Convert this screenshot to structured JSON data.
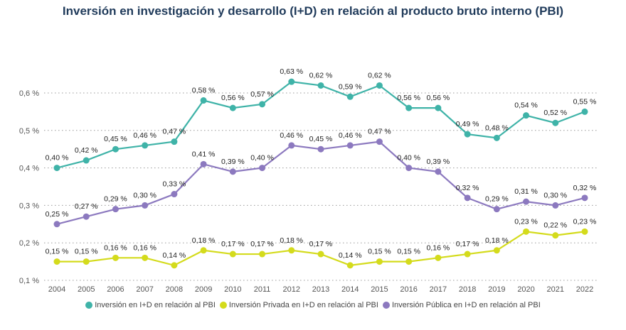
{
  "chart_data": {
    "type": "line",
    "title": "Inversión en investigación y desarrollo (I+D) en relación al producto bruto interno (PBI)",
    "xlabel": "",
    "ylabel": "",
    "x": [
      "2004",
      "2005",
      "2006",
      "2007",
      "2008",
      "2009",
      "2010",
      "2011",
      "2012",
      "2013",
      "2014",
      "2015",
      "2016",
      "2017",
      "2018",
      "2019",
      "2020",
      "2021",
      "2022"
    ],
    "ylim": [
      0.1,
      0.6
    ],
    "yticks": [
      0.1,
      0.2,
      0.3,
      0.4,
      0.5,
      0.6
    ],
    "ytick_labels": [
      "0,1 %",
      "0,2 %",
      "0,3 %",
      "0,4 %",
      "0,5 %",
      "0,6 %"
    ],
    "grid": "horizontal-dotted",
    "legend_position": "bottom",
    "series": [
      {
        "name": "Inversión en I+D en relación al PBI",
        "color": "#3fb3a8",
        "values": [
          0.4,
          0.42,
          0.45,
          0.46,
          0.47,
          0.58,
          0.56,
          0.57,
          0.63,
          0.62,
          0.59,
          0.62,
          0.56,
          0.56,
          0.49,
          0.48,
          0.54,
          0.52,
          0.55
        ],
        "labels": [
          "0,40 %",
          "0,42 %",
          "0,45 %",
          "0,46 %",
          "0,47 %",
          "0,58 %",
          "0,56 %",
          "0,57 %",
          "0,63 %",
          "0,62 %",
          "0,59 %",
          "0,62 %",
          "0,56 %",
          "0,56 %",
          "0,49 %",
          "0,48 %",
          "0,54 %",
          "0,52 %",
          "0,55 %"
        ]
      },
      {
        "name": "Inversión Privada en I+D en relación al PBI",
        "color": "#d4db1c",
        "values": [
          0.15,
          0.15,
          0.16,
          0.16,
          0.14,
          0.18,
          0.17,
          0.17,
          0.18,
          0.17,
          0.14,
          0.15,
          0.15,
          0.16,
          0.17,
          0.18,
          0.23,
          0.22,
          0.23
        ],
        "labels": [
          "0,15 %",
          "0,15 %",
          "0,16 %",
          "0,16 %",
          "0,14 %",
          "0,18 %",
          "0,17 %",
          "0,17 %",
          "0,18 %",
          "0,17 %",
          "0,14 %",
          "0,15 %",
          "0,15 %",
          "0,16 %",
          "0,17 %",
          "0,18 %",
          "0,23 %",
          "0,22 %",
          "0,23 %"
        ]
      },
      {
        "name": "Inversión Pública en I+D en relación al  PBI",
        "color": "#8c79bf",
        "values": [
          0.25,
          0.27,
          0.29,
          0.3,
          0.33,
          0.41,
          0.39,
          0.4,
          0.46,
          0.45,
          0.46,
          0.47,
          0.4,
          0.39,
          0.32,
          0.29,
          0.31,
          0.3,
          0.32
        ],
        "labels": [
          "0,25 %",
          "0,27 %",
          "0,29 %",
          "0,30 %",
          "0,33 %",
          "0,41 %",
          "0,39 %",
          "0,40 %",
          "0,46 %",
          "0,45 %",
          "0,46 %",
          "0,47 %",
          "0,40 %",
          "0,39 %",
          "0,32 %",
          "0,29 %",
          "0,31 %",
          "0,30 %",
          "0,32 %"
        ]
      }
    ]
  }
}
